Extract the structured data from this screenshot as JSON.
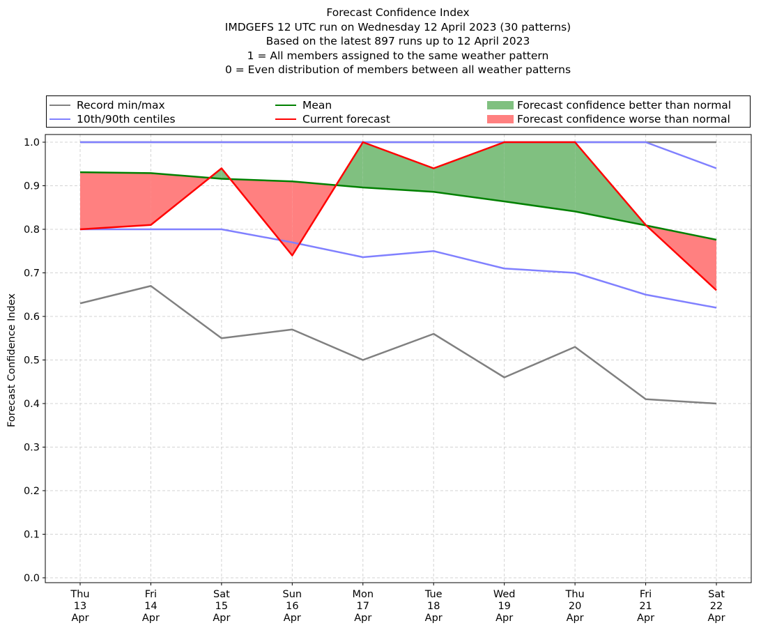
{
  "chart_data": {
    "type": "line",
    "title_lines": [
      "Forecast Confidence Index",
      "IMDGEFS 12 UTC run on Wednesday 12 April 2023 (30 patterns)",
      "Based on the latest 897 runs up to 12 April 2023",
      "1 = All members assigned to the same weather pattern",
      "0 = Even distribution of members between all weather patterns"
    ],
    "xlabel": "",
    "ylabel": "Forecast Confidence Index",
    "ylim": [
      0,
      1
    ],
    "yticks": [
      "0.0",
      "0.1",
      "0.2",
      "0.3",
      "0.4",
      "0.5",
      "0.6",
      "0.7",
      "0.8",
      "0.9",
      "1.0"
    ],
    "categories": [
      [
        "Thu",
        "13",
        "Apr"
      ],
      [
        "Fri",
        "14",
        "Apr"
      ],
      [
        "Sat",
        "15",
        "Apr"
      ],
      [
        "Sun",
        "16",
        "Apr"
      ],
      [
        "Mon",
        "17",
        "Apr"
      ],
      [
        "Tue",
        "18",
        "Apr"
      ],
      [
        "Wed",
        "19",
        "Apr"
      ],
      [
        "Thu",
        "20",
        "Apr"
      ],
      [
        "Fri",
        "21",
        "Apr"
      ],
      [
        "Sat",
        "22",
        "Apr"
      ]
    ],
    "grid": true,
    "legend_position": "top",
    "legend": {
      "record": "Record min/max",
      "centiles": "10th/90th centiles",
      "mean": "Mean",
      "current": "Current forecast",
      "better": "Forecast confidence better than normal",
      "worse": "Forecast confidence worse than normal"
    },
    "colors": {
      "record": "#808080",
      "centiles": "#8080ff",
      "mean": "#008000",
      "current": "#ff0000",
      "better": "#80c080",
      "worse": "#ff8080",
      "grid": "#d3d3d3"
    },
    "series": [
      {
        "name": "Record max",
        "key": "record",
        "values": [
          1.0,
          1.0,
          1.0,
          1.0,
          1.0,
          1.0,
          1.0,
          1.0,
          1.0,
          1.0
        ]
      },
      {
        "name": "Record min",
        "key": "record",
        "values": [
          0.63,
          0.67,
          0.55,
          0.57,
          0.5,
          0.56,
          0.46,
          0.53,
          0.41,
          0.4
        ]
      },
      {
        "name": "90th centile",
        "key": "centiles",
        "values": [
          1.0,
          1.0,
          1.0,
          1.0,
          1.0,
          1.0,
          1.0,
          1.0,
          1.0,
          0.94
        ]
      },
      {
        "name": "10th centile",
        "key": "centiles",
        "values": [
          0.8,
          0.8,
          0.8,
          0.77,
          0.736,
          0.75,
          0.71,
          0.7,
          0.65,
          0.62
        ]
      },
      {
        "name": "Mean",
        "key": "mean",
        "values": [
          0.931,
          0.929,
          0.916,
          0.91,
          0.896,
          0.886,
          0.864,
          0.841,
          0.809,
          0.776
        ]
      },
      {
        "name": "Current forecast",
        "key": "current",
        "values": [
          0.8,
          0.81,
          0.94,
          0.74,
          1.0,
          0.94,
          1.0,
          1.0,
          0.81,
          0.66
        ]
      }
    ]
  }
}
